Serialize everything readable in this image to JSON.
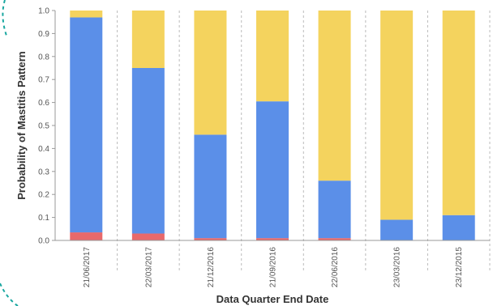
{
  "chart_data": {
    "type": "bar",
    "stacked": true,
    "categories": [
      "21/06/2017",
      "22/03/2017",
      "21/12/2016",
      "21/09/2016",
      "22/06/2016",
      "23/03/2016",
      "23/12/2015"
    ],
    "series": [
      {
        "color": "#e8696b",
        "values": [
          0.035,
          0.03,
          0.01,
          0.01,
          0.01,
          0.0,
          0.0
        ]
      },
      {
        "color": "#5b8fe8",
        "values": [
          0.935,
          0.72,
          0.45,
          0.595,
          0.25,
          0.09,
          0.11
        ]
      },
      {
        "color": "#f4d35e",
        "values": [
          0.03,
          0.25,
          0.54,
          0.395,
          0.74,
          0.91,
          0.89
        ]
      }
    ],
    "xlabel": "Data Quarter End Date",
    "ylabel": "Probability of Mastitis Pattern",
    "ylim": [
      0,
      1.0
    ],
    "yticks": [
      "0.0",
      "0.1",
      "0.2",
      "0.3",
      "0.4",
      "0.5",
      "0.6",
      "0.7",
      "0.8",
      "0.9",
      "1.0"
    ],
    "grid": "vertical-dashed",
    "legend": "none"
  },
  "colors": {
    "axis": "#999999",
    "grid": "#bbbbbb",
    "decoration": "#1aa7a0"
  }
}
